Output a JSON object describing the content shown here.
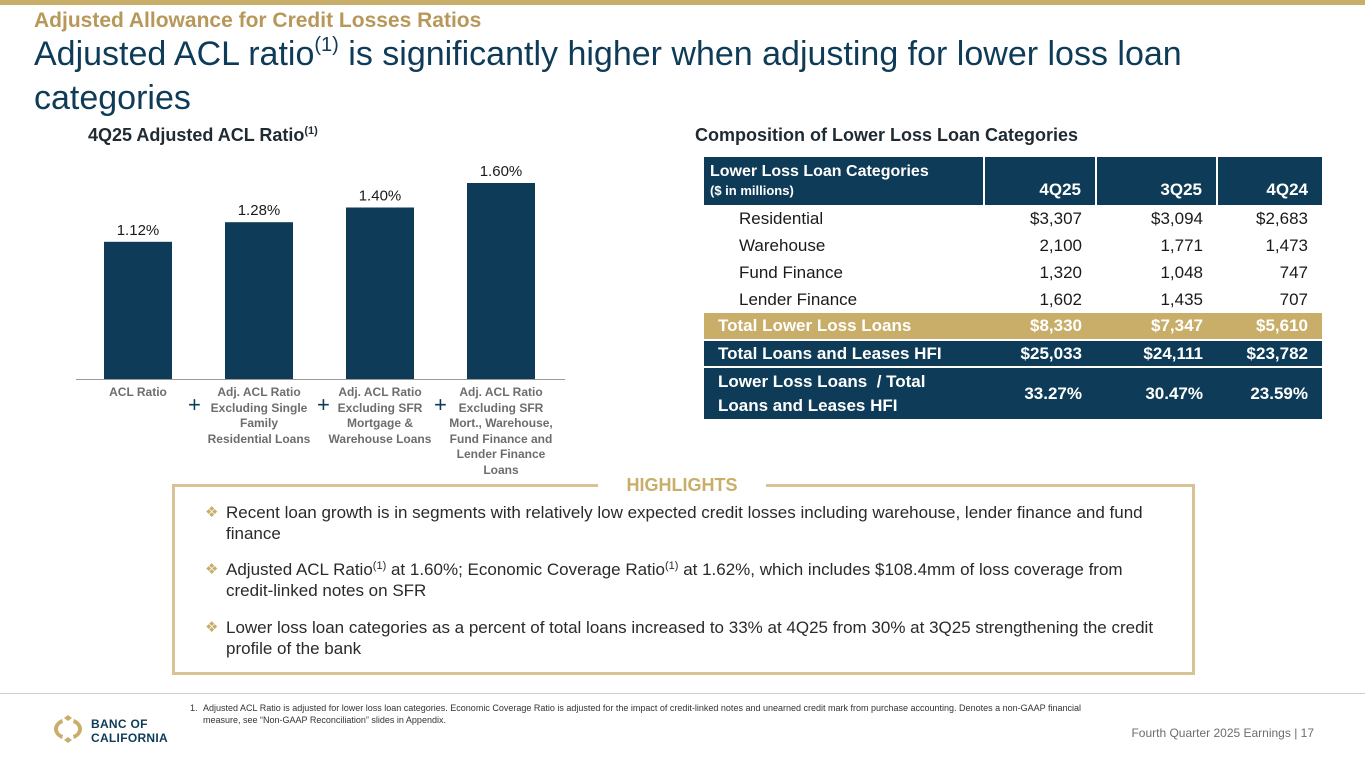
{
  "header": {
    "kicker": "Adjusted Allowance for Credit Losses Ratios",
    "headline_main": "Adjusted ACL ratio",
    "headline_sup": "(1)",
    "headline_rest": " is significantly higher when adjusting for lower loss loan categories"
  },
  "left": {
    "title": "4Q25 Adjusted ACL Ratio",
    "title_sup": "(1)",
    "plus_symbol": "+"
  },
  "chart_data": {
    "type": "bar",
    "title": "4Q25 Adjusted ACL Ratio(1)",
    "categories": [
      "ACL Ratio",
      "Adj. ACL Ratio Excluding Single Family Residential Loans",
      "Adj. ACL Ratio Excluding SFR Mortgage & Warehouse Loans",
      "Adj. ACL Ratio Excluding SFR Mort., Warehouse, Fund Finance and Lender Finance Loans"
    ],
    "category_lines": [
      [
        "ACL Ratio"
      ],
      [
        "Adj. ACL Ratio",
        "Excluding Single",
        "Family",
        "Residential Loans"
      ],
      [
        "Adj. ACL Ratio",
        "Excluding SFR",
        "Mortgage &",
        "Warehouse Loans"
      ],
      [
        "Adj. ACL Ratio",
        "Excluding SFR",
        "Mort., Warehouse,",
        "Fund Finance and",
        "Lender Finance",
        "Loans"
      ]
    ],
    "values": [
      1.12,
      1.28,
      1.4,
      1.6
    ],
    "value_labels": [
      "1.12%",
      "1.28%",
      "1.40%",
      "1.60%"
    ],
    "unit": "%",
    "ylim": [
      0,
      1.6
    ],
    "xlabel": "",
    "ylabel": "",
    "color": "#0e3b57"
  },
  "right": {
    "title": "Composition of Lower Loss Loan Categories",
    "table": {
      "head_title": "Lower Loss Loan Categories",
      "head_sub": "($ in millions)",
      "columns": [
        "4Q25",
        "3Q25",
        "4Q24"
      ],
      "rows": [
        {
          "label": "Residential",
          "values": [
            "$3,307",
            "$3,094",
            "$2,683"
          ]
        },
        {
          "label": "Warehouse",
          "values": [
            "2,100",
            "1,771",
            "1,473"
          ]
        },
        {
          "label": "Fund Finance",
          "values": [
            "1,320",
            "1,048",
            "747"
          ]
        },
        {
          "label": "Lender Finance",
          "values": [
            "1,602",
            "1,435",
            "707"
          ]
        }
      ],
      "total_lower": {
        "label": "Total Lower Loss Loans",
        "values": [
          "$8,330",
          "$7,347",
          "$5,610"
        ]
      },
      "total_hfi": {
        "label": "Total Loans and Leases HFI",
        "values": [
          "$25,033",
          "$24,111",
          "$23,782"
        ]
      },
      "ratio": {
        "label_line1": "Lower Loss Loans  / Total",
        "label_line2": "Loans and Leases HFI",
        "values": [
          "33.27%",
          "30.47%",
          "23.59%"
        ]
      }
    }
  },
  "highlights": {
    "title": "HIGHLIGHTS",
    "bullet_glyph": "❖",
    "item1": "Recent loan growth is in segments with relatively low expected credit losses including warehouse, lender finance and fund finance",
    "item2_a": "Adjusted ACL Ratio",
    "item2_sup1": "(1)",
    "item2_b": " at 1.60%; Economic Coverage Ratio",
    "item2_sup2": "(1)",
    "item2_c": " at 1.62%, which includes $108.4mm of loss coverage from credit-linked notes on SFR",
    "item3": "Lower loss loan categories as a percent of total loans increased to 33% at 4Q25 from 30% at 3Q25 strengthening the credit profile of the bank"
  },
  "footer": {
    "footnote_num": "1.",
    "footnote_text": "Adjusted ACL Ratio is adjusted for lower loss loan categories. Economic Coverage Ratio is adjusted for the impact of credit-linked notes and unearned credit mark from purchase accounting. Denotes a non-GAAP financial measure, see “Non-GAAP Reconciliation” slides in Appendix.",
    "logo_line1": "BANC OF",
    "logo_line2": "CALIFORNIA",
    "page_label": "Fourth Quarter 2025 Earnings |  17"
  },
  "colors": {
    "navy": "#0e3b57",
    "gold": "#c9ae6a",
    "light_gold": "#d7c394",
    "grey_label": "#6d6d6d"
  }
}
